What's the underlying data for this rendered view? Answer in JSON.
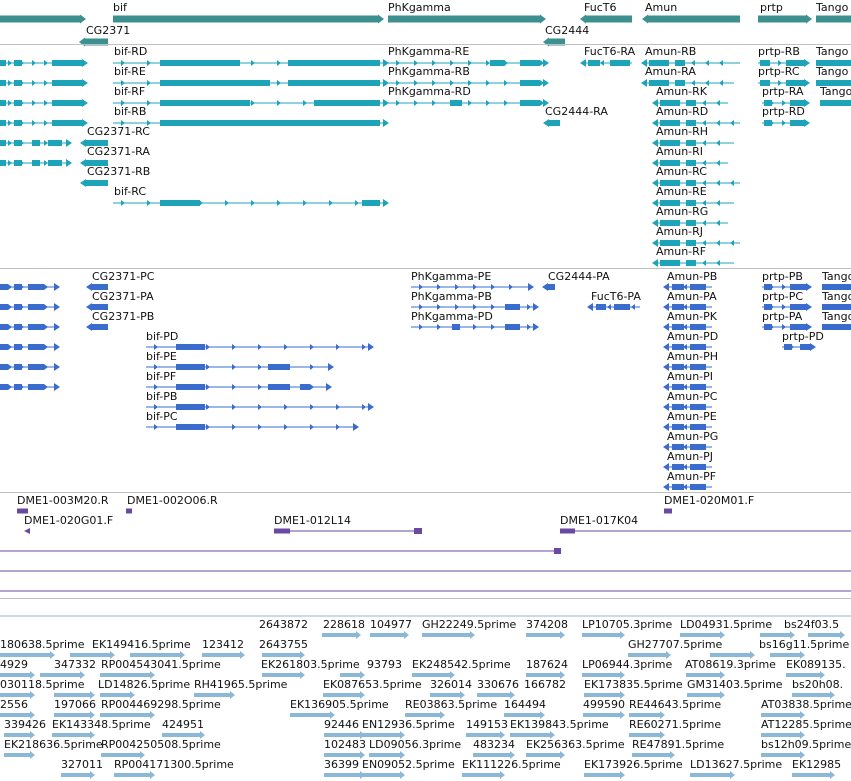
{
  "colors": {
    "gene": "#3d9090",
    "transcript": "#1ea4b8",
    "protein": "#3a6ccd",
    "clone": "#6a4aa0",
    "est": "#8cb8d8",
    "separator": "#c0c0c0"
  },
  "tracks": {
    "genes": {
      "labels": [
        "bif",
        "CG2371",
        "PhKgamma",
        "CG2444",
        "FucT6",
        "Amun",
        "prtp",
        "Tango"
      ]
    },
    "transcripts": {
      "labels": [
        "bif-RD",
        "bif-RE",
        "bif-RF",
        "bif-RB",
        "bif-RC",
        "CG2371-RC",
        "CG2371-RA",
        "CG2371-RB",
        "PhKgamma-RE",
        "PhKgamma-RB",
        "PhKgamma-RD",
        "CG2444-RA",
        "FucT6-RA",
        "Amun-RB",
        "Amun-RA",
        "Amun-RK",
        "Amun-RD",
        "Amun-RH",
        "Amun-RI",
        "Amun-RC",
        "Amun-RE",
        "Amun-RG",
        "Amun-RJ",
        "Amun-RF",
        "prtp-RB",
        "prtp-RC",
        "prtp-RA",
        "prtp-RD",
        "Tango",
        "Tango",
        "Tango"
      ]
    },
    "proteins": {
      "labels": [
        "CG2371-PC",
        "CG2371-PA",
        "CG2371-PB",
        "bif-PD",
        "bif-PE",
        "bif-PF",
        "bif-PB",
        "bif-PC",
        "PhKgamma-PE",
        "PhKgamma-PB",
        "PhKgamma-PD",
        "CG2444-PA",
        "FucT6-PA",
        "Amun-PB",
        "Amun-PA",
        "Amun-PK",
        "Amun-PD",
        "Amun-PH",
        "Amun-PI",
        "Amun-PC",
        "Amun-PE",
        "Amun-PG",
        "Amun-PJ",
        "Amun-PF",
        "prtp-PB",
        "prtp-PC",
        "prtp-PA",
        "prtp-PD",
        "Tango",
        "Tango",
        "Tango"
      ]
    },
    "clones": {
      "labels": [
        "DME1-003M20.R",
        "DME1-002O06.R",
        "DME1-020G01.F",
        "DME1-012L14",
        "DME1-017K04",
        "DME1-020M01.F"
      ]
    },
    "ests": {
      "labels": [
        "2643872",
        "228618",
        "104977",
        "GH22249.5prime",
        "374208",
        "LP10705.3prime",
        "LD04931.5prime",
        "bs24f03.5",
        "180638.5prime",
        "EK149416.5prime",
        "123412",
        "2643755",
        "GH27707.5prime",
        "bs16g11.5prime",
        "4929",
        "347332",
        "RP004543041.5prime",
        "EK261803.5prime",
        "93793",
        "EK248542.5prime",
        "187624",
        "LP06944.3prime",
        "AT08619.3prime",
        "EK089135.",
        "030118.5prime",
        "LD14826.5prime",
        "RH41965.5prime",
        "EK087653.5prime",
        "326014",
        "330676",
        "166782",
        "EK173835.5prime",
        "GM31403.5prime",
        "bs20h08.",
        "2556",
        "197066",
        "RP004469298.5prime",
        "EK136905.5prime",
        "RE03863.5prime",
        "164494",
        "499590",
        "RE44643.5prime",
        "AT03838.5prime",
        "339426",
        "EK143348.5prime",
        "424951",
        "92446",
        "EN12936.5prime",
        "149153",
        "EK139843.5prime",
        "RE60271.5prime",
        "AT12285.5prime",
        "EK218636.5prime",
        "RP004250508.5prime",
        "102483",
        "LD09056.3prime",
        "483234",
        "EK256363.5prime",
        "RE47891.5prime",
        "bs12h09.5prime",
        "327011",
        "RP004171300.5prime",
        "36399",
        "EN09052.5prime",
        "EK111226.5prime",
        "EK173926.5prime",
        "LD13627.5prime",
        "EK12985"
      ]
    }
  }
}
